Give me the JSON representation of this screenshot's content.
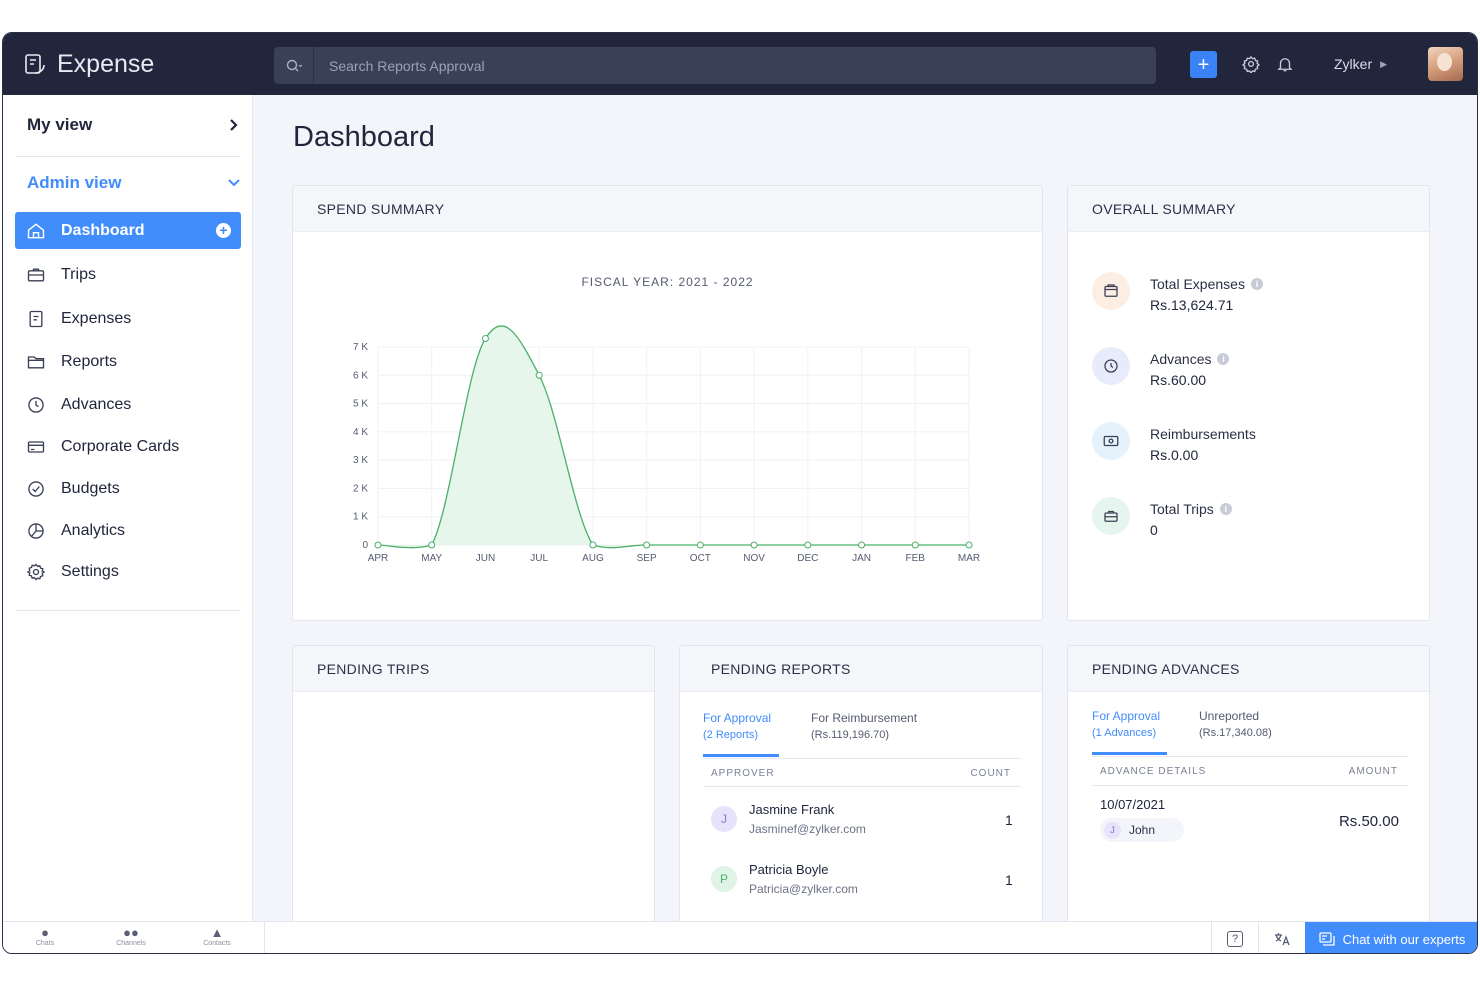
{
  "app": {
    "name": "Expense"
  },
  "search": {
    "placeholder": "Search Reports Approval"
  },
  "topbar": {
    "org": "Zylker",
    "add_label": "+"
  },
  "sidebar": {
    "my_view": "My view",
    "admin_view": "Admin view",
    "items": [
      {
        "label": "Dashboard",
        "icon": "home-icon",
        "active": true
      },
      {
        "label": "Trips",
        "icon": "suitcase-icon"
      },
      {
        "label": "Expenses",
        "icon": "receipt-icon"
      },
      {
        "label": "Reports",
        "icon": "folder-icon"
      },
      {
        "label": "Advances",
        "icon": "clock-coin-icon"
      },
      {
        "label": "Corporate Cards",
        "icon": "credit-card-icon"
      },
      {
        "label": "Budgets",
        "icon": "check-circle-icon"
      },
      {
        "label": "Analytics",
        "icon": "pie-chart-icon"
      },
      {
        "label": "Settings",
        "icon": "gear-icon"
      }
    ]
  },
  "page": {
    "title": "Dashboard"
  },
  "spend_summary": {
    "title": "SPEND SUMMARY",
    "chart_data": {
      "type": "area",
      "title": "FISCAL YEAR: 2021 - 2022",
      "categories": [
        "APR",
        "MAY",
        "JUN",
        "JUL",
        "AUG",
        "SEP",
        "OCT",
        "NOV",
        "DEC",
        "JAN",
        "FEB",
        "MAR"
      ],
      "values": [
        0,
        0,
        7300,
        6000,
        0,
        0,
        0,
        0,
        0,
        0,
        0,
        0
      ],
      "yticks": [
        "0",
        "1 K",
        "2 K",
        "3 K",
        "4 K",
        "5 K",
        "6 K",
        "7 K"
      ],
      "ylim": [
        0,
        7000
      ],
      "grid": true,
      "color": "#4caf6a"
    }
  },
  "overall_summary": {
    "title": "OVERALL SUMMARY",
    "items": [
      {
        "label": "Total Expenses",
        "value": "Rs.13,624.71",
        "icon": "wallet-icon",
        "info": true,
        "bg": "#fdeee3"
      },
      {
        "label": "Advances",
        "value": "Rs.60.00",
        "icon": "advance-clock-icon",
        "info": true,
        "bg": "#e8ecfa"
      },
      {
        "label": "Reimbursements",
        "value": "Rs.0.00",
        "icon": "cash-icon",
        "info": false,
        "bg": "#e5f2fb"
      },
      {
        "label": "Total Trips",
        "value": "0",
        "icon": "briefcase-icon",
        "info": true,
        "bg": "#e6f5ee"
      }
    ]
  },
  "pending_trips": {
    "title": "PENDING TRIPS"
  },
  "pending_reports": {
    "title": "PENDING REPORTS",
    "tab_active_line1": "For Approval",
    "tab_active_line2": "(2 Reports)",
    "tab_inactive_line1": "For Reimbursement",
    "tab_inactive_line2": "(Rs.119,196.70)",
    "col_approver": "APPROVER",
    "col_count": "COUNT",
    "rows": [
      {
        "initial": "J",
        "name": "Jasmine Frank",
        "email": "Jasminef@zylker.com",
        "count": "1"
      },
      {
        "initial": "P",
        "name": "Patricia Boyle",
        "email": "Patricia@zylker.com",
        "count": "1"
      }
    ]
  },
  "pending_advances": {
    "title": "PENDING ADVANCES",
    "tab_active_line1": "For Approval",
    "tab_active_line2": "(1 Advances)",
    "tab_inactive_line1": "Unreported",
    "tab_inactive_line2": "(Rs.17,340.08)",
    "col_details": "ADVANCE DETAILS",
    "col_amount": "AMOUNT",
    "row": {
      "date": "10/07/2021",
      "initial": "J",
      "name": "John",
      "amount": "Rs.50.00"
    }
  },
  "bottombar": {
    "items": [
      "Chats",
      "Channels",
      "Contacts"
    ],
    "help": "?",
    "chat_label": "Chat with our experts"
  }
}
